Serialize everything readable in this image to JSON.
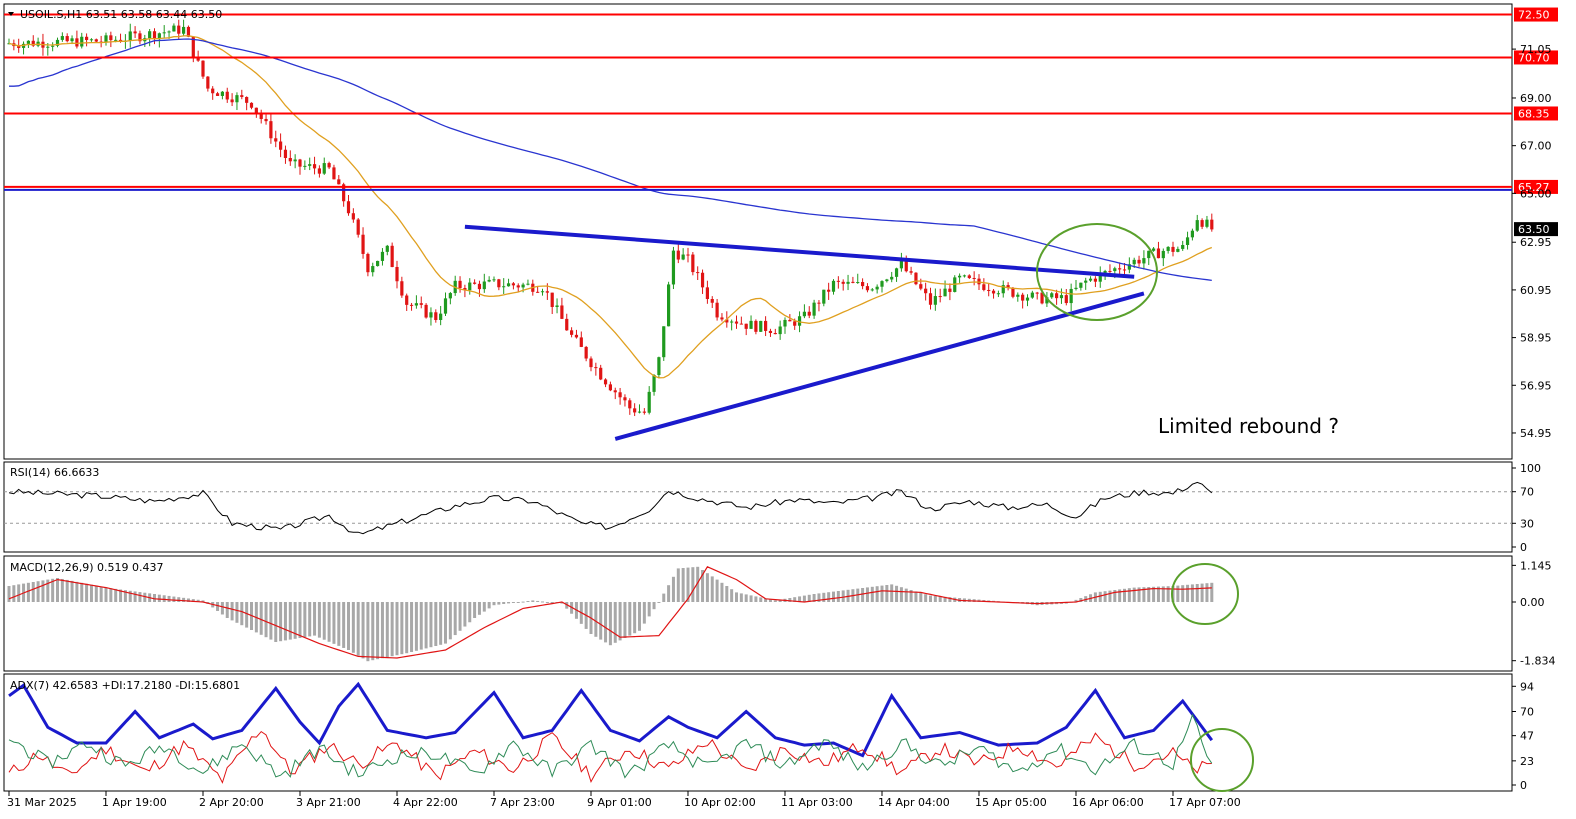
{
  "colors": {
    "background": "#ffffff",
    "frame": "#000000",
    "bull_candle": "#1f9a1f",
    "bear_candle": "#e01414",
    "ma_short": "#e0a020",
    "ma_long": "#2a35d0",
    "level_line": "#ff0000",
    "trendline": "#1a1acc",
    "highlight_circle": "#5aa02c",
    "rsi_line": "#000000",
    "macd_hist": "#a8a8a8",
    "macd_signal": "#e01414",
    "adx_main": "#1a1acc",
    "plus_di": "#e01414",
    "minus_di": "#2e8b57"
  },
  "chart_data": [
    {
      "type": "candlestick",
      "panel": "main",
      "title": "USOIL.S,H1  63.51 63.58 63.44 63.50",
      "ylim": [
        53.9,
        72.9
      ],
      "y_ticks": [
        "71.05",
        "69.00",
        "67.00",
        "65.00",
        "62.95",
        "60.95",
        "58.95",
        "56.95",
        "54.95"
      ],
      "x_ticks": [
        "31 Mar 2025",
        "1 Apr 19:00",
        "2 Apr 20:00",
        "3 Apr 21:00",
        "4 Apr 22:00",
        "7 Apr 23:00",
        "9 Apr 01:00",
        "10 Apr 02:00",
        "11 Apr 03:00",
        "14 Apr 04:00",
        "15 Apr 05:00",
        "16 Apr 06:00",
        "17 Apr 07:00"
      ],
      "x_tick_index": [
        0,
        20,
        40,
        60,
        80,
        100,
        120,
        140,
        160,
        180,
        200,
        220,
        240
      ],
      "price_anchors": [
        [
          0,
          71.3
        ],
        [
          20,
          71.4
        ],
        [
          36,
          71.9
        ],
        [
          41,
          69.4
        ],
        [
          50,
          68.8
        ],
        [
          58,
          66.2
        ],
        [
          66,
          66.0
        ],
        [
          70,
          64.3
        ],
        [
          74,
          61.9
        ],
        [
          78,
          62.6
        ],
        [
          82,
          60.4
        ],
        [
          88,
          59.8
        ],
        [
          92,
          61.1
        ],
        [
          100,
          61.2
        ],
        [
          110,
          61.1
        ],
        [
          116,
          59.0
        ],
        [
          122,
          57.4
        ],
        [
          128,
          56.0
        ],
        [
          131,
          55.8
        ],
        [
          134,
          58.0
        ],
        [
          137,
          62.6
        ],
        [
          140,
          62.2
        ],
        [
          146,
          60.0
        ],
        [
          152,
          59.5
        ],
        [
          158,
          59.3
        ],
        [
          164,
          59.8
        ],
        [
          170,
          61.2
        ],
        [
          178,
          61.1
        ],
        [
          184,
          62.0
        ],
        [
          190,
          60.4
        ],
        [
          196,
          61.4
        ],
        [
          204,
          61.0
        ],
        [
          212,
          60.6
        ],
        [
          218,
          60.6
        ],
        [
          222,
          61.3
        ],
        [
          230,
          62.0
        ],
        [
          238,
          62.6
        ],
        [
          242,
          62.7
        ],
        [
          245,
          64.0
        ],
        [
          248,
          63.5
        ]
      ],
      "last_price": "63.50",
      "levels": [
        {
          "label": "72.50",
          "value": 72.5
        },
        {
          "label": "70.70",
          "value": 70.7
        },
        {
          "label": "68.35",
          "value": 68.35
        },
        {
          "label": "65.27",
          "value": 65.27
        }
      ],
      "trendlines": [
        {
          "from": [
            94,
            63.6
          ],
          "to": [
            232,
            61.5
          ]
        },
        {
          "from": [
            125,
            54.7
          ],
          "to": [
            234,
            60.8
          ]
        }
      ],
      "annotation": "Limited rebound ?"
    },
    {
      "type": "line",
      "panel": "rsi",
      "title": "RSI(14) 66.6633",
      "ylim": [
        0,
        100
      ],
      "y_ticks": [
        "100",
        "70",
        "30",
        "0"
      ],
      "levels": [
        70,
        30
      ],
      "anchors": [
        [
          0,
          70
        ],
        [
          18,
          65
        ],
        [
          30,
          58
        ],
        [
          40,
          68
        ],
        [
          46,
          30
        ],
        [
          56,
          22
        ],
        [
          66,
          40
        ],
        [
          72,
          15
        ],
        [
          80,
          30
        ],
        [
          92,
          52
        ],
        [
          100,
          62
        ],
        [
          108,
          58
        ],
        [
          118,
          30
        ],
        [
          124,
          25
        ],
        [
          132,
          48
        ],
        [
          136,
          72
        ],
        [
          142,
          62
        ],
        [
          152,
          50
        ],
        [
          162,
          60
        ],
        [
          170,
          55
        ],
        [
          178,
          62
        ],
        [
          184,
          70
        ],
        [
          190,
          48
        ],
        [
          198,
          58
        ],
        [
          206,
          50
        ],
        [
          214,
          54
        ],
        [
          220,
          38
        ],
        [
          226,
          62
        ],
        [
          234,
          70
        ],
        [
          240,
          68
        ],
        [
          245,
          83
        ],
        [
          248,
          66.7
        ]
      ]
    },
    {
      "type": "bar+line",
      "panel": "macd",
      "title": "MACD(12,26,9) 0.519 0.437",
      "ylim": [
        -2.0,
        1.25
      ],
      "y_ticks": [
        "1.145",
        "0.00",
        "-1.834"
      ],
      "histogram_anchors": [
        [
          0,
          0.5
        ],
        [
          10,
          0.75
        ],
        [
          20,
          0.45
        ],
        [
          30,
          0.25
        ],
        [
          40,
          0.05
        ],
        [
          45,
          -0.5
        ],
        [
          55,
          -1.25
        ],
        [
          63,
          -1.05
        ],
        [
          70,
          -1.5
        ],
        [
          74,
          -1.85
        ],
        [
          82,
          -1.6
        ],
        [
          90,
          -1.3
        ],
        [
          96,
          -0.5
        ],
        [
          100,
          -0.1
        ],
        [
          108,
          0.05
        ],
        [
          114,
          -0.05
        ],
        [
          120,
          -1.0
        ],
        [
          124,
          -1.35
        ],
        [
          130,
          -0.9
        ],
        [
          134,
          0.0
        ],
        [
          138,
          1.05
        ],
        [
          142,
          1.1
        ],
        [
          150,
          0.3
        ],
        [
          158,
          0.05
        ],
        [
          166,
          0.25
        ],
        [
          174,
          0.4
        ],
        [
          182,
          0.55
        ],
        [
          190,
          0.2
        ],
        [
          198,
          0.1
        ],
        [
          206,
          0.0
        ],
        [
          212,
          -0.1
        ],
        [
          218,
          -0.05
        ],
        [
          224,
          0.3
        ],
        [
          232,
          0.45
        ],
        [
          240,
          0.5
        ],
        [
          248,
          0.6
        ]
      ],
      "signal_anchors": [
        [
          0,
          0.1
        ],
        [
          10,
          0.7
        ],
        [
          20,
          0.45
        ],
        [
          30,
          0.1
        ],
        [
          40,
          0.0
        ],
        [
          48,
          -0.3
        ],
        [
          56,
          -0.8
        ],
        [
          64,
          -1.3
        ],
        [
          72,
          -1.7
        ],
        [
          80,
          -1.75
        ],
        [
          90,
          -1.5
        ],
        [
          98,
          -0.8
        ],
        [
          106,
          -0.2
        ],
        [
          114,
          0.0
        ],
        [
          120,
          -0.5
        ],
        [
          126,
          -1.1
        ],
        [
          134,
          -1.05
        ],
        [
          140,
          0.1
        ],
        [
          144,
          1.1
        ],
        [
          150,
          0.7
        ],
        [
          156,
          0.1
        ],
        [
          164,
          0.0
        ],
        [
          172,
          0.15
        ],
        [
          180,
          0.35
        ],
        [
          188,
          0.3
        ],
        [
          196,
          0.05
        ],
        [
          204,
          0.0
        ],
        [
          212,
          -0.05
        ],
        [
          220,
          0.0
        ],
        [
          228,
          0.3
        ],
        [
          236,
          0.42
        ],
        [
          242,
          0.4
        ],
        [
          248,
          0.44
        ]
      ]
    },
    {
      "type": "line",
      "panel": "adx",
      "title": "ADX(7) 42.6583 +DI:17.2180 -DI:15.6801",
      "ylim": [
        0,
        100
      ],
      "y_ticks": [
        "94",
        "70",
        "47",
        "23",
        "0"
      ],
      "series": [
        {
          "name": "ADX(7)",
          "anchors": [
            [
              0,
              85
            ],
            [
              3,
              95
            ],
            [
              8,
              55
            ],
            [
              14,
              40
            ],
            [
              20,
              40
            ],
            [
              26,
              70
            ],
            [
              31,
              45
            ],
            [
              38,
              58
            ],
            [
              42,
              44
            ],
            [
              48,
              52
            ],
            [
              55,
              92
            ],
            [
              60,
              60
            ],
            [
              64,
              40
            ],
            [
              68,
              75
            ],
            [
              72,
              96
            ],
            [
              78,
              52
            ],
            [
              86,
              45
            ],
            [
              92,
              50
            ],
            [
              100,
              88
            ],
            [
              106,
              45
            ],
            [
              112,
              52
            ],
            [
              118,
              90
            ],
            [
              124,
              52
            ],
            [
              130,
              42
            ],
            [
              136,
              65
            ],
            [
              140,
              55
            ],
            [
              146,
              45
            ],
            [
              152,
              70
            ],
            [
              158,
              45
            ],
            [
              164,
              38
            ],
            [
              170,
              40
            ],
            [
              176,
              28
            ],
            [
              182,
              85
            ],
            [
              188,
              45
            ],
            [
              196,
              50
            ],
            [
              204,
              38
            ],
            [
              212,
              40
            ],
            [
              218,
              55
            ],
            [
              224,
              90
            ],
            [
              230,
              45
            ],
            [
              236,
              52
            ],
            [
              242,
              80
            ],
            [
              248,
              42.7
            ]
          ]
        },
        {
          "name": "+DI",
          "anchors": [
            [
              0,
              10
            ],
            [
              6,
              30
            ],
            [
              12,
              8
            ],
            [
              20,
              35
            ],
            [
              28,
              12
            ],
            [
              36,
              38
            ],
            [
              44,
              5
            ],
            [
              52,
              55
            ],
            [
              58,
              12
            ],
            [
              66,
              38
            ],
            [
              72,
              20
            ],
            [
              80,
              40
            ],
            [
              88,
              8
            ],
            [
              96,
              32
            ],
            [
              104,
              15
            ],
            [
              112,
              45
            ],
            [
              120,
              10
            ],
            [
              128,
              35
            ],
            [
              136,
              15
            ],
            [
              144,
              42
            ],
            [
              152,
              12
            ],
            [
              160,
              35
            ],
            [
              168,
              20
            ],
            [
              176,
              38
            ],
            [
              184,
              12
            ],
            [
              192,
              35
            ],
            [
              200,
              20
            ],
            [
              208,
              38
            ],
            [
              216,
              18
            ],
            [
              224,
              45
            ],
            [
              232,
              20
            ],
            [
              240,
              30
            ],
            [
              244,
              15
            ],
            [
              248,
              17.2
            ]
          ]
        },
        {
          "name": "-DI",
          "anchors": [
            [
              0,
              45
            ],
            [
              8,
              20
            ],
            [
              16,
              40
            ],
            [
              24,
              18
            ],
            [
              32,
              38
            ],
            [
              40,
              12
            ],
            [
              48,
              40
            ],
            [
              56,
              8
            ],
            [
              64,
              35
            ],
            [
              72,
              10
            ],
            [
              80,
              28
            ],
            [
              88,
              30
            ],
            [
              96,
              10
            ],
            [
              104,
              40
            ],
            [
              112,
              12
            ],
            [
              120,
              38
            ],
            [
              128,
              10
            ],
            [
              136,
              38
            ],
            [
              144,
              15
            ],
            [
              152,
              40
            ],
            [
              160,
              18
            ],
            [
              168,
              42
            ],
            [
              176,
              15
            ],
            [
              184,
              40
            ],
            [
              192,
              18
            ],
            [
              200,
              35
            ],
            [
              208,
              12
            ],
            [
              216,
              35
            ],
            [
              224,
              15
            ],
            [
              232,
              38
            ],
            [
              240,
              20
            ],
            [
              244,
              62
            ],
            [
              248,
              15.7
            ]
          ]
        }
      ]
    }
  ]
}
